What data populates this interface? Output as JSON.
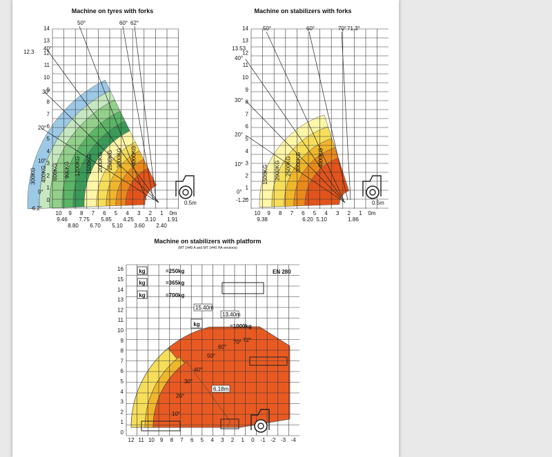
{
  "colors": {
    "grid": "#333333",
    "c300": "#9cc9e6",
    "c400": "#c7e7c1",
    "c600": "#93d08b",
    "c900": "#5bb566",
    "c1200": "#3a9a58",
    "c1500": "#fff6a8",
    "c2000": "#f7de5a",
    "c2500": "#f0b62c",
    "c3000": "#ea8a1c",
    "c4000": "#e2541b",
    "platform": "#e85a22"
  },
  "chart1": {
    "title": "Machine on tyres with forks",
    "y_ticks": [
      "0",
      "1",
      "2",
      "3",
      "4",
      "5",
      "6",
      "7",
      "8",
      "9",
      "10",
      "11",
      "12",
      "13",
      "14"
    ],
    "x_ticks": [
      "10",
      "9",
      "8",
      "7",
      "6",
      "5",
      "4",
      "3",
      "2",
      "1",
      "0m"
    ],
    "scale_label": "0.5m",
    "top_y_label": "12.3",
    "bottom_y_label": "-6.2°",
    "x_sub_labels": [
      "9.46",
      "8.80",
      "7.75",
      "6.70",
      "5.85",
      "5.10",
      "4.25",
      "3.60",
      "3.10",
      "2.40",
      "1.91"
    ],
    "angles": [
      "50°",
      "60°",
      "62°",
      "40°",
      "30°",
      "20°",
      "10°",
      "0°"
    ],
    "zones": [
      "300KG",
      "400KG",
      "600KG",
      "900KG",
      "1200KG",
      "1500KG",
      "2000KG",
      "2500KG",
      "3000KG",
      "4000KG"
    ]
  },
  "chart2": {
    "title": "Machine on stabilizers with forks",
    "y_ticks": [
      "0",
      "1",
      "2",
      "3",
      "4",
      "5",
      "6",
      "7",
      "8",
      "9",
      "10",
      "11",
      "12",
      "13",
      "14"
    ],
    "x_ticks": [
      "10",
      "9",
      "8",
      "7",
      "6",
      "5",
      "4",
      "3",
      "2",
      "1",
      "0m"
    ],
    "scale_label": "0.5m",
    "top_y_label": "13.53",
    "bottom_y_label": "-1.2°",
    "x_sub_labels": [
      "9.38",
      "6.20",
      "5.10",
      "1.86"
    ],
    "angles": [
      "50°",
      "60°",
      "70°",
      "71.3°",
      "40°",
      "30°",
      "20°",
      "10°",
      "0°"
    ],
    "zones": [
      "1500KG",
      "2000KG",
      "2500KG",
      "3000KG",
      "4000KG"
    ]
  },
  "chart3": {
    "title": "Machine on stabilizers with platform",
    "subtitle": "(MT 1440 A and MT 1440 HA versions)",
    "standard": "EN 280",
    "y_ticks": [
      "0",
      "1",
      "2",
      "3",
      "4",
      "5",
      "6",
      "7",
      "8",
      "9",
      "10",
      "11",
      "12",
      "13",
      "14",
      "15",
      "16"
    ],
    "x_ticks": [
      "12",
      "11",
      "10",
      "9",
      "8",
      "7",
      "6",
      "5",
      "4",
      "3",
      "2",
      "1",
      "0",
      "-1",
      "-2",
      "-3",
      "-4"
    ],
    "loads": [
      "=250kg",
      "=365kg",
      "=700kg",
      "=1000kg"
    ],
    "kg_symbol": "kg",
    "dims": [
      "15.40m",
      "13.40m",
      "6.18m"
    ],
    "angles": [
      "72°",
      "70°",
      "60°",
      "50°",
      "40°",
      "30°",
      "20°",
      "10°"
    ]
  }
}
